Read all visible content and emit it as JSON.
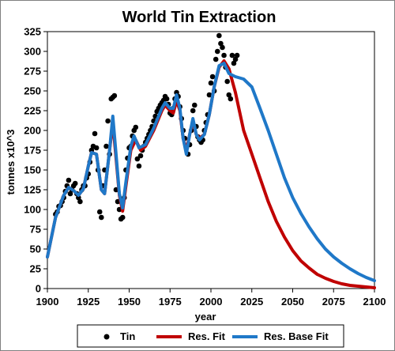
{
  "chart_data": {
    "type": "line",
    "title": "World Tin Extraction",
    "xlabel": "year",
    "ylabel": "tonnes x10^3",
    "xlim": [
      1900,
      2100
    ],
    "ylim": [
      0,
      325
    ],
    "xticks": [
      1900,
      1925,
      1950,
      1975,
      2000,
      2025,
      2050,
      2075,
      2100
    ],
    "yticks": [
      0,
      25,
      50,
      75,
      100,
      125,
      150,
      175,
      200,
      225,
      250,
      275,
      300,
      325
    ],
    "grid": false,
    "legend_position": "bottom",
    "colors": {
      "tin": "#000000",
      "res_fit": "#c00000",
      "res_base_fit": "#1f78c8"
    },
    "legend": [
      "Tin",
      "Res. Fit",
      "Res. Base Fit"
    ],
    "series": [
      {
        "name": "Tin",
        "kind": "scatter",
        "points": [
          [
            1905,
            94
          ],
          [
            1906,
            97
          ],
          [
            1907,
            104
          ],
          [
            1908,
            105
          ],
          [
            1909,
            110
          ],
          [
            1910,
            115
          ],
          [
            1911,
            123
          ],
          [
            1912,
            130
          ],
          [
            1913,
            137
          ],
          [
            1914,
            120
          ],
          [
            1915,
            125
          ],
          [
            1916,
            130
          ],
          [
            1917,
            133
          ],
          [
            1918,
            120
          ],
          [
            1919,
            115
          ],
          [
            1920,
            110
          ],
          [
            1921,
            125
          ],
          [
            1922,
            130
          ],
          [
            1923,
            130
          ],
          [
            1924,
            140
          ],
          [
            1925,
            145
          ],
          [
            1926,
            160
          ],
          [
            1927,
            175
          ],
          [
            1928,
            180
          ],
          [
            1929,
            196
          ],
          [
            1930,
            178
          ],
          [
            1931,
            150
          ],
          [
            1932,
            97
          ],
          [
            1933,
            90
          ],
          [
            1934,
            130
          ],
          [
            1935,
            150
          ],
          [
            1936,
            180
          ],
          [
            1937,
            212
          ],
          [
            1938,
            170
          ],
          [
            1939,
            240
          ],
          [
            1940,
            242
          ],
          [
            1941,
            244
          ],
          [
            1942,
            125
          ],
          [
            1943,
            110
          ],
          [
            1944,
            100
          ],
          [
            1945,
            88
          ],
          [
            1946,
            90
          ],
          [
            1947,
            115
          ],
          [
            1948,
            150
          ],
          [
            1949,
            165
          ],
          [
            1950,
            178
          ],
          [
            1951,
            180
          ],
          [
            1952,
            193
          ],
          [
            1953,
            200
          ],
          [
            1954,
            204
          ],
          [
            1955,
            164
          ],
          [
            1956,
            155
          ],
          [
            1957,
            168
          ],
          [
            1958,
            175
          ],
          [
            1959,
            180
          ],
          [
            1960,
            185
          ],
          [
            1961,
            190
          ],
          [
            1962,
            195
          ],
          [
            1963,
            200
          ],
          [
            1964,
            205
          ],
          [
            1965,
            212
          ],
          [
            1966,
            218
          ],
          [
            1967,
            224
          ],
          [
            1968,
            228
          ],
          [
            1969,
            232
          ],
          [
            1970,
            235
          ],
          [
            1971,
            238
          ],
          [
            1972,
            243
          ],
          [
            1973,
            240
          ],
          [
            1974,
            233
          ],
          [
            1975,
            222
          ],
          [
            1976,
            220
          ],
          [
            1977,
            228
          ],
          [
            1978,
            240
          ],
          [
            1979,
            248
          ],
          [
            1980,
            243
          ],
          [
            1981,
            230
          ],
          [
            1982,
            215
          ],
          [
            1983,
            200
          ],
          [
            1984,
            190
          ],
          [
            1985,
            178
          ],
          [
            1986,
            170
          ],
          [
            1987,
            182
          ],
          [
            1988,
            200
          ],
          [
            1989,
            225
          ],
          [
            1990,
            232
          ],
          [
            1991,
            205
          ],
          [
            1992,
            192
          ],
          [
            1993,
            188
          ],
          [
            1994,
            185
          ],
          [
            1995,
            188
          ],
          [
            1996,
            200
          ],
          [
            1997,
            210
          ],
          [
            1998,
            220
          ],
          [
            1999,
            245
          ],
          [
            2000,
            260
          ],
          [
            2001,
            268
          ],
          [
            2002,
            250
          ],
          [
            2003,
            290
          ],
          [
            2004,
            300
          ],
          [
            2005,
            320
          ],
          [
            2006,
            310
          ],
          [
            2007,
            305
          ],
          [
            2008,
            295
          ],
          [
            2009,
            280
          ],
          [
            2010,
            262
          ],
          [
            2011,
            245
          ],
          [
            2012,
            240
          ],
          [
            2013,
            295
          ],
          [
            2014,
            285
          ],
          [
            2015,
            290
          ],
          [
            2016,
            295
          ]
        ]
      },
      {
        "name": "Res. Fit",
        "kind": "line",
        "points": [
          [
            1900,
            40
          ],
          [
            1905,
            90
          ],
          [
            1910,
            118
          ],
          [
            1913,
            128
          ],
          [
            1916,
            124
          ],
          [
            1919,
            118
          ],
          [
            1922,
            126
          ],
          [
            1925,
            155
          ],
          [
            1927,
            172
          ],
          [
            1930,
            170
          ],
          [
            1933,
            125
          ],
          [
            1935,
            120
          ],
          [
            1938,
            175
          ],
          [
            1940,
            210
          ],
          [
            1942,
            165
          ],
          [
            1944,
            118
          ],
          [
            1946,
            98
          ],
          [
            1948,
            130
          ],
          [
            1951,
            175
          ],
          [
            1954,
            188
          ],
          [
            1957,
            175
          ],
          [
            1960,
            180
          ],
          [
            1965,
            200
          ],
          [
            1970,
            225
          ],
          [
            1972,
            232
          ],
          [
            1975,
            225
          ],
          [
            1977,
            222
          ],
          [
            1979,
            238
          ],
          [
            1981,
            225
          ],
          [
            1983,
            190
          ],
          [
            1985,
            175
          ],
          [
            1987,
            195
          ],
          [
            1989,
            212
          ],
          [
            1991,
            195
          ],
          [
            1993,
            190
          ],
          [
            1996,
            195
          ],
          [
            1999,
            220
          ],
          [
            2002,
            255
          ],
          [
            2005,
            280
          ],
          [
            2008,
            288
          ],
          [
            2011,
            278
          ],
          [
            2015,
            248
          ],
          [
            2020,
            200
          ],
          [
            2025,
            170
          ],
          [
            2030,
            140
          ],
          [
            2035,
            110
          ],
          [
            2040,
            85
          ],
          [
            2045,
            65
          ],
          [
            2050,
            48
          ],
          [
            2055,
            35
          ],
          [
            2060,
            26
          ],
          [
            2065,
            18
          ],
          [
            2070,
            13
          ],
          [
            2075,
            9
          ],
          [
            2080,
            6
          ],
          [
            2085,
            4
          ],
          [
            2090,
            3
          ],
          [
            2095,
            2
          ],
          [
            2100,
            1
          ]
        ]
      },
      {
        "name": "Res. Base Fit",
        "kind": "line",
        "points": [
          [
            1900,
            40
          ],
          [
            1905,
            90
          ],
          [
            1910,
            118
          ],
          [
            1913,
            128
          ],
          [
            1916,
            124
          ],
          [
            1919,
            118
          ],
          [
            1922,
            126
          ],
          [
            1925,
            155
          ],
          [
            1927,
            172
          ],
          [
            1930,
            170
          ],
          [
            1933,
            125
          ],
          [
            1935,
            120
          ],
          [
            1938,
            175
          ],
          [
            1940,
            218
          ],
          [
            1942,
            170
          ],
          [
            1944,
            120
          ],
          [
            1946,
            102
          ],
          [
            1948,
            135
          ],
          [
            1951,
            180
          ],
          [
            1953,
            193
          ],
          [
            1956,
            178
          ],
          [
            1960,
            182
          ],
          [
            1965,
            203
          ],
          [
            1970,
            228
          ],
          [
            1972,
            235
          ],
          [
            1975,
            228
          ],
          [
            1977,
            228
          ],
          [
            1979,
            245
          ],
          [
            1981,
            228
          ],
          [
            1983,
            190
          ],
          [
            1985,
            170
          ],
          [
            1987,
            195
          ],
          [
            1989,
            215
          ],
          [
            1991,
            195
          ],
          [
            1993,
            188
          ],
          [
            1996,
            195
          ],
          [
            1999,
            220
          ],
          [
            2002,
            255
          ],
          [
            2005,
            282
          ],
          [
            2008,
            285
          ],
          [
            2011,
            272
          ],
          [
            2015,
            268
          ],
          [
            2020,
            265
          ],
          [
            2025,
            255
          ],
          [
            2030,
            228
          ],
          [
            2035,
            200
          ],
          [
            2040,
            170
          ],
          [
            2045,
            140
          ],
          [
            2050,
            115
          ],
          [
            2055,
            95
          ],
          [
            2060,
            78
          ],
          [
            2065,
            63
          ],
          [
            2070,
            50
          ],
          [
            2075,
            40
          ],
          [
            2080,
            32
          ],
          [
            2085,
            25
          ],
          [
            2090,
            19
          ],
          [
            2095,
            14
          ],
          [
            2100,
            10
          ]
        ]
      }
    ]
  }
}
